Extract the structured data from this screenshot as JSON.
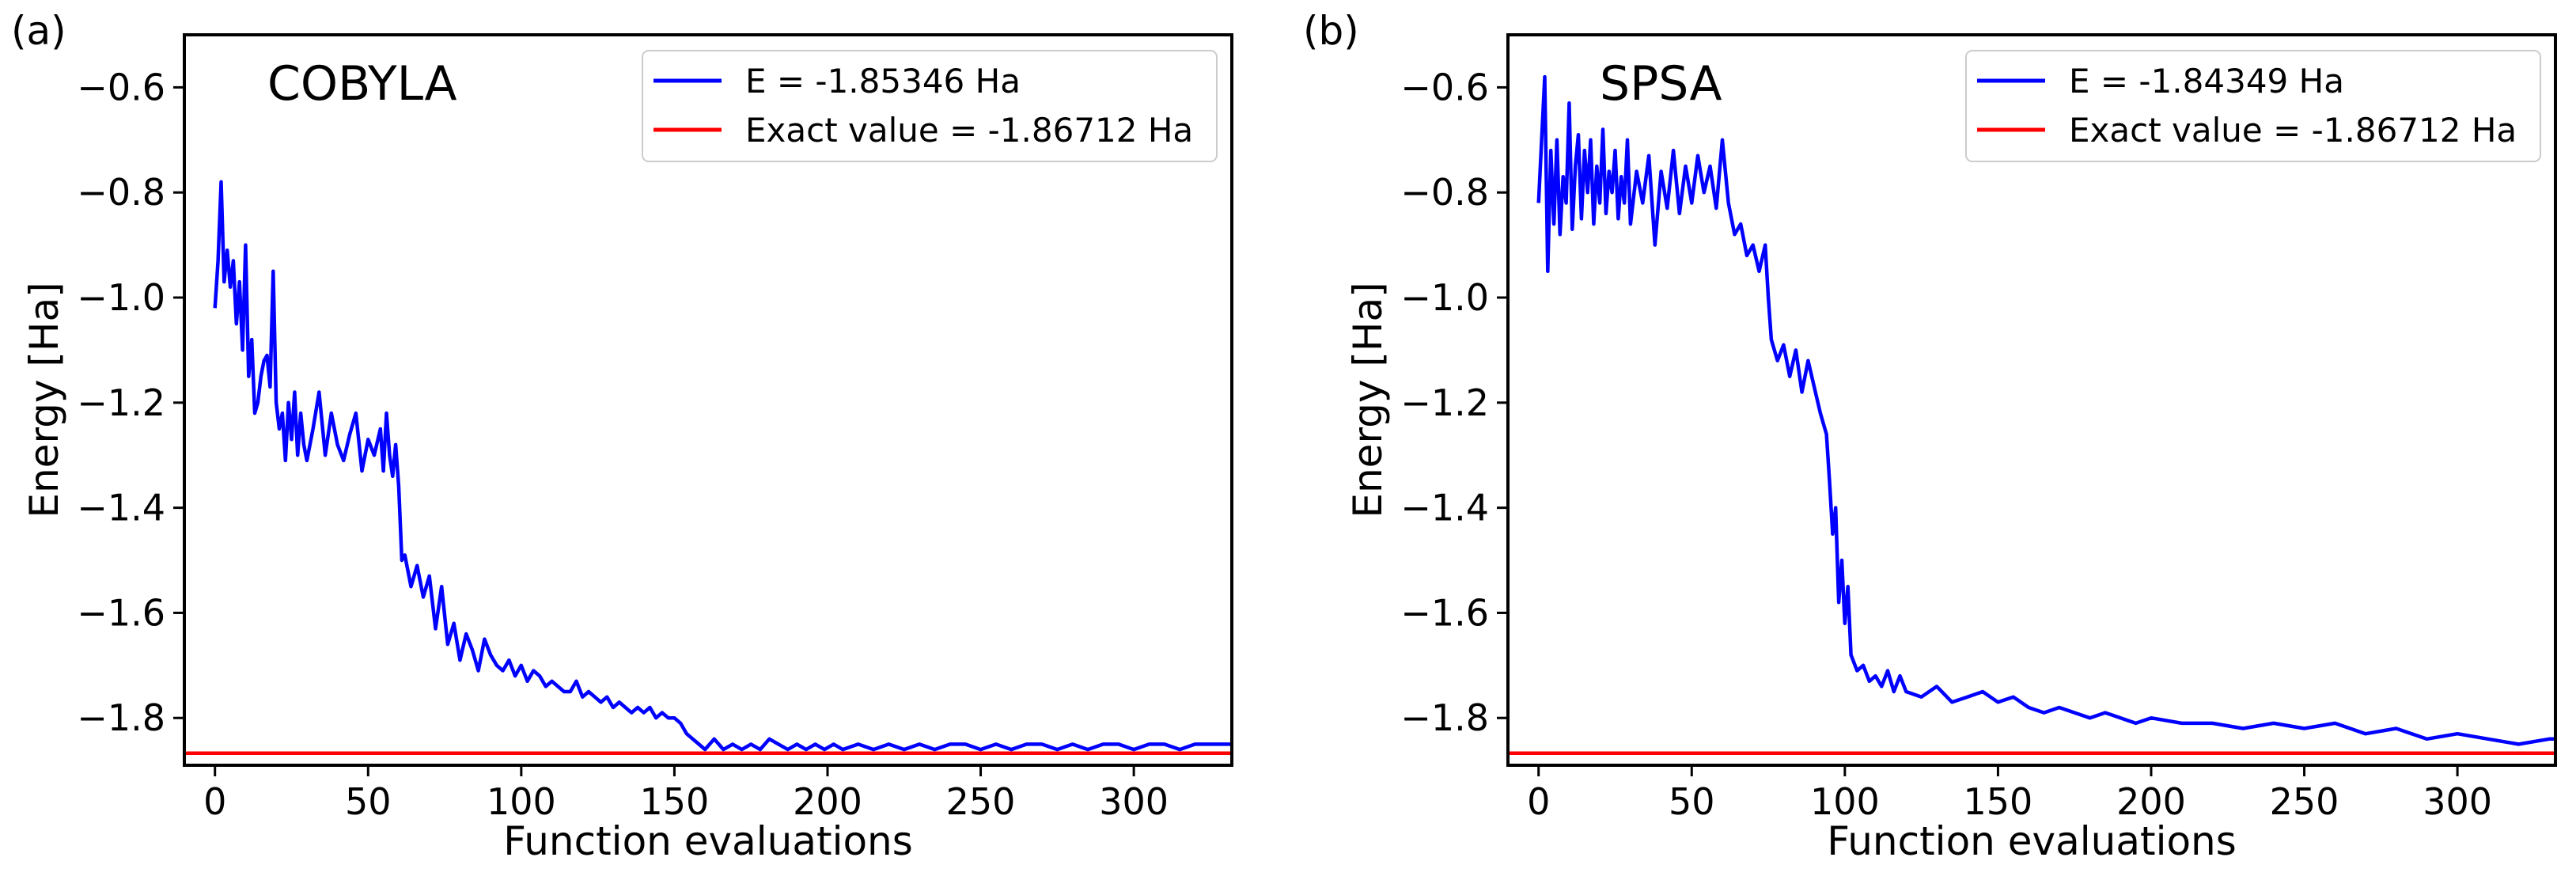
{
  "chart_data": [
    {
      "type": "line",
      "panel_label": "(a)",
      "optimizer_label": "COBYLA",
      "xlabel": "Function evaluations",
      "ylabel": "Energy [Ha]",
      "xlim": [
        -10,
        332
      ],
      "ylim": [
        -1.89,
        -0.5
      ],
      "xticks": [
        0,
        50,
        100,
        150,
        200,
        250,
        300
      ],
      "xtick_labels": [
        "0",
        "50",
        "100",
        "150",
        "200",
        "250",
        "300"
      ],
      "yticks": [
        -1.8,
        -1.6,
        -1.4,
        -1.2,
        -1.0,
        -0.8,
        -0.6
      ],
      "ytick_labels": [
        "−1.8",
        "−1.6",
        "−1.4",
        "−1.2",
        "−1.0",
        "−0.8",
        "−0.6"
      ],
      "grid": false,
      "legend_position": "top-right",
      "series": [
        {
          "name": "E = -1.85346 Ha",
          "color": "#0000ff",
          "x": [
            0,
            1,
            2,
            3,
            4,
            5,
            6,
            7,
            8,
            9,
            10,
            11,
            12,
            13,
            14,
            15,
            16,
            17,
            18,
            19,
            20,
            21,
            22,
            23,
            24,
            25,
            26,
            27,
            28,
            29,
            30,
            32,
            34,
            36,
            38,
            40,
            42,
            44,
            46,
            48,
            50,
            52,
            54,
            55,
            56,
            57,
            58,
            59,
            60,
            61,
            62,
            64,
            66,
            68,
            70,
            72,
            74,
            76,
            78,
            80,
            82,
            84,
            86,
            88,
            90,
            92,
            94,
            96,
            98,
            100,
            102,
            104,
            106,
            108,
            110,
            112,
            114,
            116,
            118,
            120,
            122,
            124,
            126,
            128,
            130,
            132,
            134,
            136,
            138,
            140,
            142,
            144,
            146,
            148,
            150,
            152,
            154,
            156,
            158,
            160,
            163,
            166,
            169,
            172,
            175,
            178,
            181,
            184,
            187,
            190,
            193,
            196,
            199,
            202,
            205,
            210,
            215,
            220,
            225,
            230,
            235,
            240,
            245,
            250,
            255,
            260,
            265,
            270,
            275,
            280,
            285,
            290,
            295,
            300,
            305,
            310,
            315,
            320,
            325,
            330,
            332
          ],
          "values": [
            -1.02,
            -0.93,
            -0.78,
            -0.97,
            -0.91,
            -0.98,
            -0.93,
            -1.05,
            -0.97,
            -1.1,
            -0.9,
            -1.15,
            -1.08,
            -1.22,
            -1.2,
            -1.15,
            -1.12,
            -1.11,
            -1.17,
            -0.95,
            -1.2,
            -1.25,
            -1.22,
            -1.31,
            -1.2,
            -1.27,
            -1.18,
            -1.3,
            -1.22,
            -1.28,
            -1.31,
            -1.25,
            -1.18,
            -1.3,
            -1.22,
            -1.28,
            -1.31,
            -1.26,
            -1.22,
            -1.33,
            -1.27,
            -1.3,
            -1.25,
            -1.33,
            -1.22,
            -1.3,
            -1.34,
            -1.28,
            -1.36,
            -1.5,
            -1.49,
            -1.55,
            -1.51,
            -1.57,
            -1.53,
            -1.63,
            -1.55,
            -1.66,
            -1.62,
            -1.69,
            -1.64,
            -1.67,
            -1.71,
            -1.65,
            -1.68,
            -1.7,
            -1.71,
            -1.69,
            -1.72,
            -1.7,
            -1.73,
            -1.71,
            -1.72,
            -1.74,
            -1.73,
            -1.74,
            -1.75,
            -1.75,
            -1.73,
            -1.76,
            -1.75,
            -1.76,
            -1.77,
            -1.76,
            -1.78,
            -1.77,
            -1.78,
            -1.79,
            -1.78,
            -1.79,
            -1.78,
            -1.8,
            -1.79,
            -1.8,
            -1.8,
            -1.81,
            -1.83,
            -1.84,
            -1.85,
            -1.86,
            -1.84,
            -1.86,
            -1.85,
            -1.86,
            -1.85,
            -1.86,
            -1.84,
            -1.85,
            -1.86,
            -1.85,
            -1.86,
            -1.85,
            -1.86,
            -1.85,
            -1.86,
            -1.85,
            -1.86,
            -1.85,
            -1.86,
            -1.85,
            -1.86,
            -1.85,
            -1.85,
            -1.86,
            -1.85,
            -1.86,
            -1.85,
            -1.85,
            -1.86,
            -1.85,
            -1.86,
            -1.85,
            -1.85,
            -1.86,
            -1.85,
            -1.85,
            -1.86,
            -1.85,
            -1.85,
            -1.85,
            -1.85
          ]
        },
        {
          "name": "Exact value = -1.86712 Ha",
          "color": "#ff0000",
          "x": [
            -10,
            332
          ],
          "values": [
            -1.86712,
            -1.86712
          ]
        }
      ]
    },
    {
      "type": "line",
      "panel_label": "(b)",
      "optimizer_label": "SPSA",
      "xlabel": "Function evaluations",
      "ylabel": "Energy [Ha]",
      "xlim": [
        -10,
        332
      ],
      "ylim": [
        -1.89,
        -0.5
      ],
      "xticks": [
        0,
        50,
        100,
        150,
        200,
        250,
        300
      ],
      "xtick_labels": [
        "0",
        "50",
        "100",
        "150",
        "200",
        "250",
        "300"
      ],
      "yticks": [
        -1.8,
        -1.6,
        -1.4,
        -1.2,
        -1.0,
        -0.8,
        -0.6
      ],
      "ytick_labels": [
        "−1.8",
        "−1.6",
        "−1.4",
        "−1.2",
        "−1.0",
        "−0.8",
        "−0.6"
      ],
      "grid": false,
      "legend_position": "top-right",
      "series": [
        {
          "name": "E = -1.84349 Ha",
          "color": "#0000ff",
          "x": [
            0,
            1,
            2,
            3,
            4,
            5,
            6,
            7,
            8,
            9,
            10,
            11,
            12,
            13,
            14,
            15,
            16,
            17,
            18,
            19,
            20,
            21,
            22,
            23,
            24,
            25,
            26,
            27,
            28,
            29,
            30,
            32,
            34,
            36,
            38,
            40,
            42,
            44,
            46,
            48,
            50,
            52,
            54,
            56,
            58,
            60,
            62,
            64,
            66,
            68,
            70,
            72,
            74,
            75,
            76,
            78,
            80,
            82,
            84,
            86,
            88,
            90,
            92,
            94,
            95,
            96,
            97,
            98,
            99,
            100,
            101,
            102,
            104,
            106,
            108,
            110,
            112,
            114,
            116,
            118,
            120,
            125,
            130,
            135,
            140,
            145,
            150,
            155,
            160,
            165,
            170,
            175,
            180,
            185,
            190,
            195,
            200,
            210,
            220,
            230,
            240,
            250,
            260,
            270,
            280,
            290,
            300,
            310,
            320,
            330,
            332
          ],
          "values": [
            -0.82,
            -0.7,
            -0.58,
            -0.95,
            -0.72,
            -0.86,
            -0.7,
            -0.88,
            -0.77,
            -0.82,
            -0.63,
            -0.87,
            -0.75,
            -0.69,
            -0.85,
            -0.72,
            -0.8,
            -0.7,
            -0.86,
            -0.75,
            -0.82,
            -0.68,
            -0.84,
            -0.76,
            -0.8,
            -0.72,
            -0.85,
            -0.77,
            -0.82,
            -0.7,
            -0.86,
            -0.76,
            -0.82,
            -0.73,
            -0.9,
            -0.76,
            -0.83,
            -0.72,
            -0.84,
            -0.75,
            -0.82,
            -0.73,
            -0.8,
            -0.75,
            -0.83,
            -0.7,
            -0.82,
            -0.88,
            -0.86,
            -0.92,
            -0.9,
            -0.95,
            -0.9,
            -1.0,
            -1.08,
            -1.12,
            -1.09,
            -1.15,
            -1.1,
            -1.18,
            -1.12,
            -1.17,
            -1.22,
            -1.26,
            -1.35,
            -1.45,
            -1.4,
            -1.58,
            -1.5,
            -1.62,
            -1.55,
            -1.68,
            -1.71,
            -1.7,
            -1.73,
            -1.72,
            -1.74,
            -1.71,
            -1.75,
            -1.72,
            -1.75,
            -1.76,
            -1.74,
            -1.77,
            -1.76,
            -1.75,
            -1.77,
            -1.76,
            -1.78,
            -1.79,
            -1.78,
            -1.79,
            -1.8,
            -1.79,
            -1.8,
            -1.81,
            -1.8,
            -1.81,
            -1.81,
            -1.82,
            -1.81,
            -1.82,
            -1.81,
            -1.83,
            -1.82,
            -1.84,
            -1.83,
            -1.84,
            -1.85,
            -1.84,
            -1.84
          ]
        },
        {
          "name": "Exact value = -1.86712 Ha",
          "color": "#ff0000",
          "x": [
            -10,
            332
          ],
          "values": [
            -1.86712,
            -1.86712
          ]
        }
      ]
    }
  ]
}
